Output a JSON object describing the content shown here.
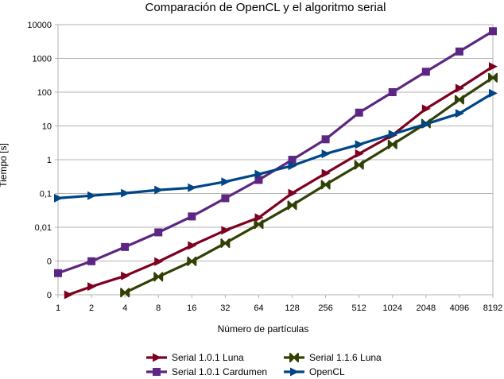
{
  "chart_data": {
    "type": "line",
    "title": "Comparación de OpenCL y el algoritmo serial",
    "xlabel": "Número de partículas",
    "ylabel": "Tiempo [s]",
    "x_scale": "log2",
    "y_scale": "log10",
    "x": [
      1,
      2,
      4,
      8,
      16,
      32,
      64,
      128,
      256,
      512,
      1024,
      2048,
      4096,
      8192
    ],
    "x_tick_labels": [
      "1",
      "2",
      "4",
      "8",
      "16",
      "32",
      "64",
      "128",
      "256",
      "512",
      "1024",
      "2048",
      "4096",
      "8192"
    ],
    "y_tick_values": [
      0.0001,
      0.001,
      0.01,
      0.1,
      1,
      10,
      100,
      1000,
      10000
    ],
    "y_tick_labels": [
      "0",
      "0",
      "0,01",
      "0,1",
      "1",
      "10",
      "100",
      "1000",
      "10000"
    ],
    "ylim": [
      0.0001,
      10000
    ],
    "grid": true,
    "legend_position": "bottom",
    "series": [
      {
        "name": "Serial 1.0.1 Luna",
        "color": "#7e0021",
        "marker": "triangle-right",
        "x": [
          1,
          2,
          4,
          8,
          16,
          32,
          64,
          128,
          256,
          512,
          1024,
          2048,
          4096,
          8192
        ],
        "values": [
          7.81e-05,
          0.000176,
          0.000361,
          0.00096,
          0.00288,
          0.0081,
          0.0193,
          0.102,
          0.396,
          1.51,
          5.34,
          32.3,
          131,
          574
        ]
      },
      {
        "name": "Serial 1.1.6 Luna",
        "color": "#314004",
        "marker": "x-cross",
        "x": [
          4,
          8,
          16,
          32,
          64,
          128,
          256,
          512,
          1024,
          2048,
          4096,
          8192
        ],
        "values": [
          0.000116,
          0.000342,
          0.00098,
          0.00338,
          0.0122,
          0.0448,
          0.182,
          0.702,
          2.83,
          11.8,
          59.8,
          269
        ]
      },
      {
        "name": "Serial 1.0.1 Cardumen",
        "color": "#5c2682",
        "marker": "square",
        "x": [
          1,
          2,
          4,
          8,
          16,
          32,
          64,
          128,
          256,
          512,
          1024,
          2048,
          4096,
          8192
        ],
        "values": [
          0.000437,
          0.000984,
          0.0026,
          0.00705,
          0.0209,
          0.0724,
          0.252,
          0.996,
          4.02,
          24.8,
          100,
          403,
          1600,
          6390
        ]
      },
      {
        "name": "OpenCL",
        "color": "#004586",
        "marker": "triangle-right",
        "x": [
          1,
          2,
          4,
          8,
          16,
          32,
          64,
          128,
          256,
          512,
          1024,
          2048,
          4096,
          8192
        ],
        "values": [
          0.0727,
          0.0863,
          0.102,
          0.127,
          0.148,
          0.223,
          0.374,
          0.662,
          1.49,
          2.81,
          5.68,
          11.3,
          23.4,
          93.1
        ]
      }
    ]
  }
}
